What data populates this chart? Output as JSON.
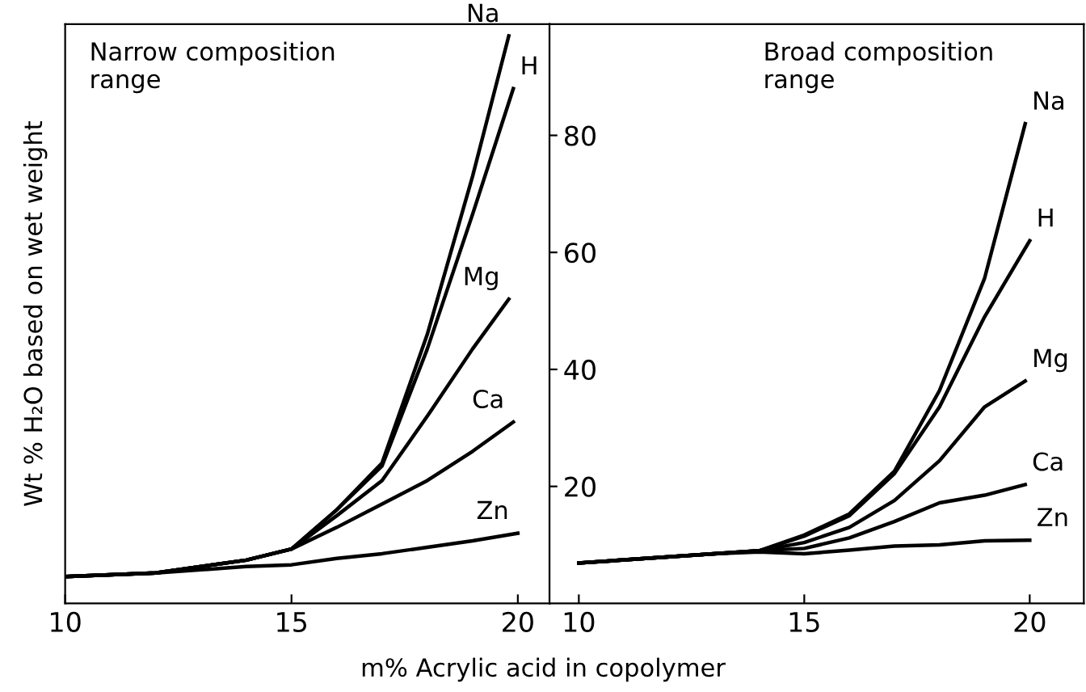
{
  "chart_data": [
    {
      "type": "line",
      "title": "Narrow composition\nrange",
      "xlabel": "m% Acrylic acid in copolymer",
      "ylabel": "Wt % H₂O based on wet weight",
      "xlim": [
        10,
        20.7
      ],
      "xticks": [
        10,
        15,
        20
      ],
      "ylim": [
        0,
        99
      ],
      "tick_labels": "x",
      "grid": false,
      "legend": false,
      "marker": "none",
      "line_style": "solid",
      "series": [
        {
          "name": "Na",
          "color": "#000000",
          "x": [
            10,
            12,
            14,
            15,
            16,
            17,
            18,
            19,
            19.8
          ],
          "values": [
            4.6,
            5.2,
            7.4,
            9.3,
            16,
            24,
            46,
            73,
            97
          ]
        },
        {
          "name": "H",
          "color": "#000000",
          "x": [
            10,
            12,
            14,
            15,
            16,
            17,
            18,
            19,
            19.9
          ],
          "values": [
            4.6,
            5.2,
            7.4,
            9.3,
            16,
            23.5,
            43.5,
            66.5,
            88
          ]
        },
        {
          "name": "Mg",
          "color": "#000000",
          "x": [
            10,
            12,
            14,
            15,
            16,
            17,
            18,
            19,
            19.8
          ],
          "values": [
            4.6,
            5.2,
            7.4,
            9.3,
            15,
            21,
            32,
            43.5,
            52
          ]
        },
        {
          "name": "Ca",
          "color": "#000000",
          "x": [
            10,
            12,
            14,
            15,
            16,
            17,
            18,
            19,
            19.9
          ],
          "values": [
            4.6,
            5.2,
            7.4,
            9.3,
            13,
            17,
            21,
            26,
            31
          ]
        },
        {
          "name": "Zn",
          "color": "#000000",
          "x": [
            10,
            12,
            14,
            15,
            16,
            17,
            18,
            19,
            20
          ],
          "values": [
            4.6,
            5.2,
            6.3,
            6.6,
            7.7,
            8.5,
            9.6,
            10.7,
            12
          ]
        }
      ]
    },
    {
      "type": "line",
      "title": "Broad composition\nrange",
      "xlim": [
        9.35,
        21.2
      ],
      "xticks": [
        10,
        15,
        20
      ],
      "ylim": [
        0,
        99
      ],
      "yticks": [
        20,
        40,
        60,
        80
      ],
      "grid": false,
      "legend": false,
      "marker": "none",
      "line_style": "solid",
      "series": [
        {
          "name": "Na",
          "color": "#000000",
          "x": [
            10,
            13,
            14,
            15,
            16,
            17,
            18,
            19,
            19.9
          ],
          "values": [
            6.9,
            8.5,
            9,
            11.7,
            15.3,
            22.6,
            36.4,
            55.6,
            82
          ]
        },
        {
          "name": "H",
          "color": "#000000",
          "x": [
            10,
            13,
            14,
            15,
            16,
            17,
            18,
            19,
            20
          ],
          "values": [
            6.9,
            8.5,
            9,
            11.5,
            15,
            22.2,
            33.6,
            49,
            62
          ]
        },
        {
          "name": "Mg",
          "color": "#000000",
          "x": [
            10,
            13,
            14,
            15,
            16,
            17,
            18,
            19,
            19.9
          ],
          "values": [
            6.9,
            8.5,
            9,
            10.4,
            13,
            17.6,
            24.4,
            33.6,
            38
          ]
        },
        {
          "name": "Ca",
          "color": "#000000",
          "x": [
            10,
            13,
            14,
            15,
            16,
            17,
            18,
            19,
            19.9
          ],
          "values": [
            6.9,
            8.5,
            9,
            9.4,
            11.2,
            14,
            17.2,
            18.5,
            20.3
          ]
        },
        {
          "name": "Zn",
          "color": "#000000",
          "x": [
            10,
            13,
            14,
            15,
            16,
            17,
            18,
            19,
            20
          ],
          "values": [
            6.9,
            8.5,
            8.8,
            8.5,
            9.1,
            9.8,
            10,
            10.7,
            10.8
          ]
        }
      ]
    }
  ]
}
